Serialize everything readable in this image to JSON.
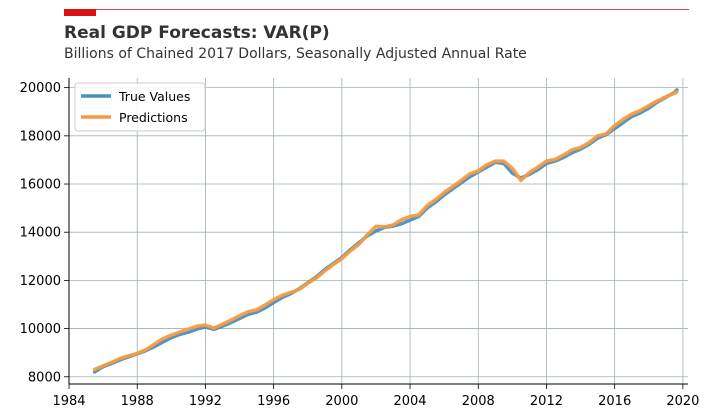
{
  "chart_data": {
    "type": "line",
    "title": "Real GDP Forecasts: VAR(P)",
    "subtitle": "Billions of Chained 2017 Dollars, Seasonally Adjusted Annual Rate",
    "xlabel": "",
    "ylabel": "",
    "xlim": [
      1984,
      2020.3
    ],
    "ylim": [
      7700,
      20400
    ],
    "xticks": [
      1984,
      1988,
      1992,
      1996,
      2000,
      2004,
      2008,
      2012,
      2016,
      2020
    ],
    "yticks": [
      8000,
      10000,
      12000,
      14000,
      16000,
      18000,
      20000
    ],
    "grid": true,
    "legend_position": "top-left",
    "colors": {
      "accent_bar": "#dd1111",
      "rule": "#c0504d",
      "grid": "#9fb1b5",
      "true_values": "#4a8fc2",
      "predictions": "#f59b3f"
    },
    "series": [
      {
        "name": "True Values",
        "points": [
          [
            1985.5,
            8200
          ],
          [
            1986.0,
            8420
          ],
          [
            1986.5,
            8550
          ],
          [
            1987.0,
            8700
          ],
          [
            1987.5,
            8830
          ],
          [
            1988.0,
            8950
          ],
          [
            1988.5,
            9080
          ],
          [
            1989.0,
            9250
          ],
          [
            1989.5,
            9440
          ],
          [
            1990.0,
            9620
          ],
          [
            1990.5,
            9760
          ],
          [
            1991.0,
            9850
          ],
          [
            1991.5,
            9980
          ],
          [
            1992.0,
            10060
          ],
          [
            1992.5,
            9970
          ],
          [
            1993.0,
            10100
          ],
          [
            1993.5,
            10250
          ],
          [
            1994.0,
            10420
          ],
          [
            1994.5,
            10590
          ],
          [
            1995.0,
            10680
          ],
          [
            1995.5,
            10860
          ],
          [
            1996.0,
            11080
          ],
          [
            1996.5,
            11290
          ],
          [
            1997.0,
            11450
          ],
          [
            1997.5,
            11650
          ],
          [
            1998.0,
            11900
          ],
          [
            1998.5,
            12150
          ],
          [
            1999.0,
            12450
          ],
          [
            1999.5,
            12700
          ],
          [
            2000.0,
            12950
          ],
          [
            2000.5,
            13280
          ],
          [
            2001.0,
            13560
          ],
          [
            2001.5,
            13850
          ],
          [
            2002.0,
            14050
          ],
          [
            2002.5,
            14200
          ],
          [
            2003.0,
            14250
          ],
          [
            2003.5,
            14350
          ],
          [
            2004.0,
            14500
          ],
          [
            2004.5,
            14650
          ],
          [
            2005.0,
            15000
          ],
          [
            2005.5,
            15250
          ],
          [
            2006.0,
            15550
          ],
          [
            2006.5,
            15800
          ],
          [
            2007.0,
            16050
          ],
          [
            2007.5,
            16300
          ],
          [
            2008.0,
            16500
          ],
          [
            2008.5,
            16700
          ],
          [
            2009.0,
            16900
          ],
          [
            2009.5,
            16850
          ],
          [
            2010.0,
            16450
          ],
          [
            2010.5,
            16250
          ],
          [
            2011.0,
            16400
          ],
          [
            2011.5,
            16600
          ],
          [
            2012.0,
            16850
          ],
          [
            2012.5,
            16950
          ],
          [
            2013.0,
            17100
          ],
          [
            2013.5,
            17300
          ],
          [
            2014.0,
            17450
          ],
          [
            2014.5,
            17650
          ],
          [
            2015.0,
            17900
          ],
          [
            2015.5,
            18050
          ],
          [
            2016.0,
            18300
          ],
          [
            2016.5,
            18550
          ],
          [
            2017.0,
            18800
          ],
          [
            2017.5,
            18950
          ],
          [
            2018.0,
            19150
          ],
          [
            2018.5,
            19400
          ],
          [
            2019.0,
            19600
          ],
          [
            2019.5,
            19800
          ],
          [
            2019.65,
            19900
          ]
        ]
      },
      {
        "name": "Predictions",
        "points": [
          [
            1985.5,
            8300
          ],
          [
            1986.0,
            8450
          ],
          [
            1986.5,
            8600
          ],
          [
            1987.0,
            8760
          ],
          [
            1987.5,
            8870
          ],
          [
            1988.0,
            8970
          ],
          [
            1988.5,
            9120
          ],
          [
            1989.0,
            9350
          ],
          [
            1989.5,
            9580
          ],
          [
            1990.0,
            9730
          ],
          [
            1990.5,
            9860
          ],
          [
            1991.0,
            9980
          ],
          [
            1991.5,
            10100
          ],
          [
            1992.0,
            10150
          ],
          [
            1992.5,
            10020
          ],
          [
            1993.0,
            10180
          ],
          [
            1993.5,
            10350
          ],
          [
            1994.0,
            10530
          ],
          [
            1994.5,
            10700
          ],
          [
            1995.0,
            10780
          ],
          [
            1995.5,
            10980
          ],
          [
            1996.0,
            11200
          ],
          [
            1996.5,
            11380
          ],
          [
            1997.0,
            11500
          ],
          [
            1997.5,
            11620
          ],
          [
            1998.0,
            11880
          ],
          [
            1998.5,
            12100
          ],
          [
            1999.0,
            12400
          ],
          [
            1999.5,
            12650
          ],
          [
            2000.0,
            12900
          ],
          [
            2000.5,
            13230
          ],
          [
            2001.0,
            13500
          ],
          [
            2001.5,
            13900
          ],
          [
            2002.0,
            14250
          ],
          [
            2002.5,
            14220
          ],
          [
            2003.0,
            14300
          ],
          [
            2003.5,
            14520
          ],
          [
            2004.0,
            14650
          ],
          [
            2004.5,
            14720
          ],
          [
            2005.0,
            15100
          ],
          [
            2005.5,
            15350
          ],
          [
            2006.0,
            15650
          ],
          [
            2006.5,
            15900
          ],
          [
            2007.0,
            16150
          ],
          [
            2007.5,
            16420
          ],
          [
            2008.0,
            16550
          ],
          [
            2008.5,
            16800
          ],
          [
            2009.0,
            16950
          ],
          [
            2009.5,
            16950
          ],
          [
            2010.0,
            16650
          ],
          [
            2010.5,
            16150
          ],
          [
            2011.0,
            16480
          ],
          [
            2011.5,
            16700
          ],
          [
            2012.0,
            16950
          ],
          [
            2012.5,
            17020
          ],
          [
            2013.0,
            17200
          ],
          [
            2013.5,
            17420
          ],
          [
            2014.0,
            17520
          ],
          [
            2014.5,
            17720
          ],
          [
            2015.0,
            18000
          ],
          [
            2015.5,
            18080
          ],
          [
            2016.0,
            18430
          ],
          [
            2016.5,
            18680
          ],
          [
            2017.0,
            18900
          ],
          [
            2017.5,
            19050
          ],
          [
            2018.0,
            19250
          ],
          [
            2018.5,
            19450
          ],
          [
            2019.0,
            19620
          ],
          [
            2019.5,
            19760
          ],
          [
            2019.65,
            19820
          ]
        ]
      }
    ]
  }
}
